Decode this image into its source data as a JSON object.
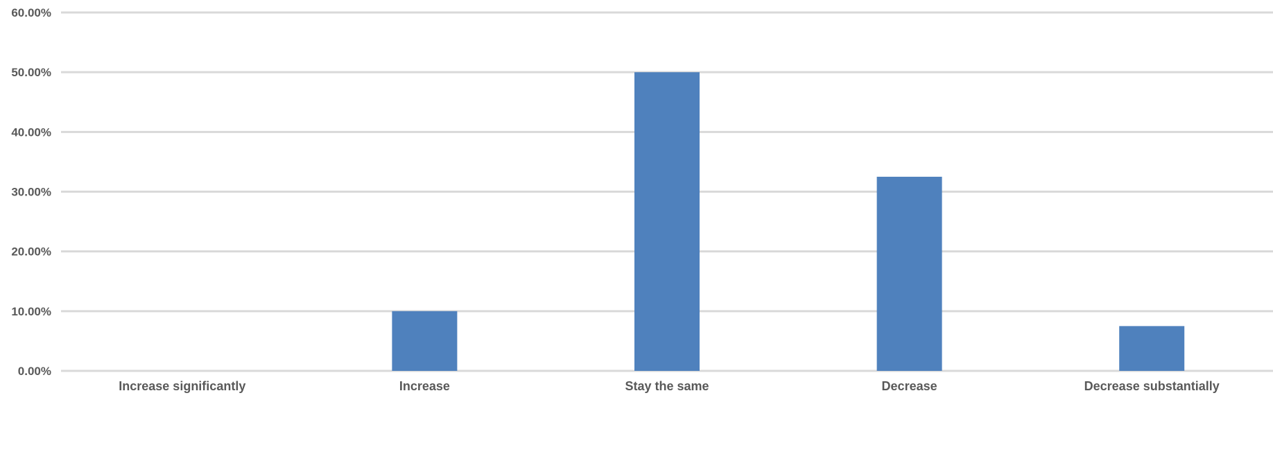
{
  "chart_data": {
    "type": "bar",
    "title": "",
    "xlabel": "",
    "ylabel": "",
    "categories": [
      "Increase significantly",
      "Increase",
      "Stay the same",
      "Decrease",
      "Decrease substantially"
    ],
    "values": [
      0,
      10,
      50,
      32.5,
      7.5
    ],
    "ylim": [
      0,
      60
    ],
    "yticks": [
      0,
      10,
      20,
      30,
      40,
      50,
      60
    ],
    "ytick_labels": [
      "0.00%",
      "10.00%",
      "20.00%",
      "30.00%",
      "40.00%",
      "50.00%",
      "60.00%"
    ],
    "grid": true,
    "legend": "none",
    "colors": {
      "bar": "#4f81bd",
      "grid": "#d9d9d9",
      "text": "#595959"
    }
  }
}
